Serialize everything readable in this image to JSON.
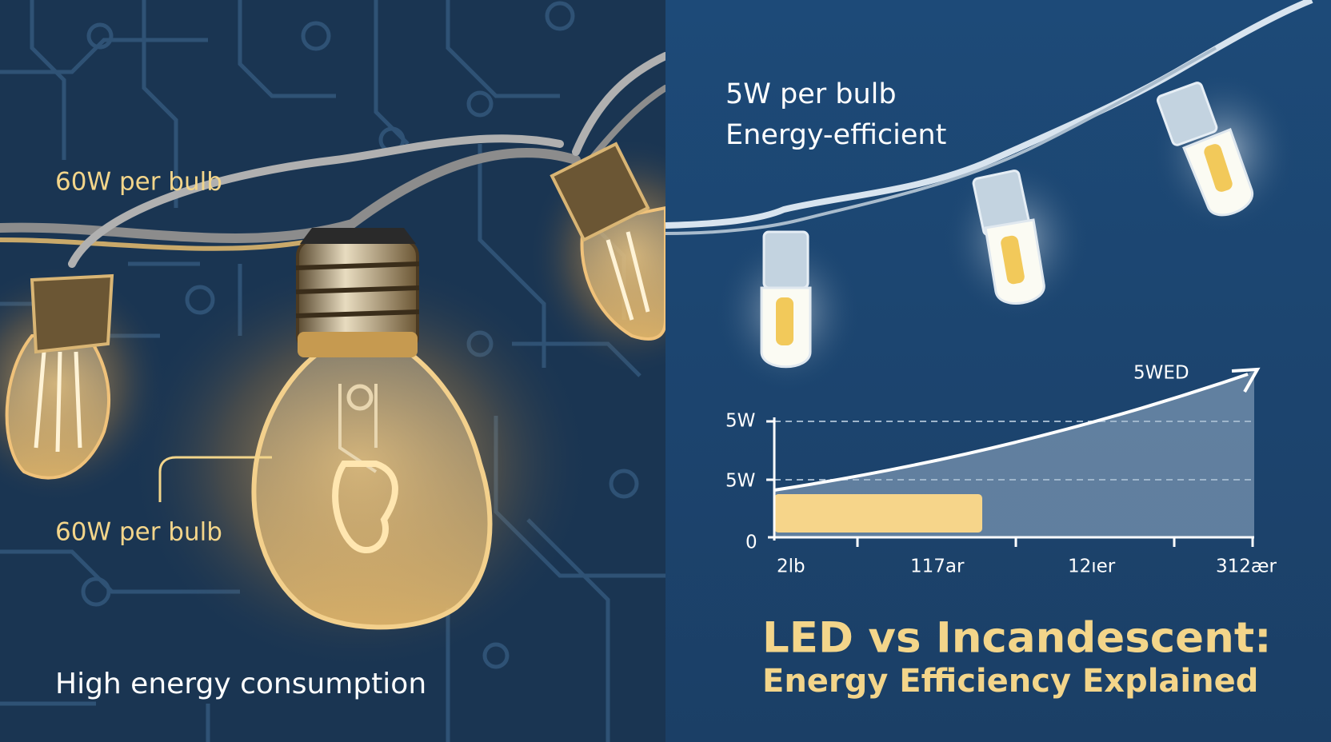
{
  "left_panel": {
    "label_top": "60W per bulb",
    "label_callout": "60W per bulb",
    "caption": "High energy consumption"
  },
  "right_panel": {
    "label_line1": "5W per bulb",
    "label_line2": "Energy-efficient",
    "chart": {
      "curve_label": "5WED",
      "y_labels": [
        "5W",
        "5W",
        "0"
      ],
      "x_labels": [
        "2lb",
        "117ar",
        "12ıer",
        "312ær"
      ]
    },
    "title_line1": "LED vs Incandescent:",
    "title_line2": "Energy Efficiency Explained"
  }
}
